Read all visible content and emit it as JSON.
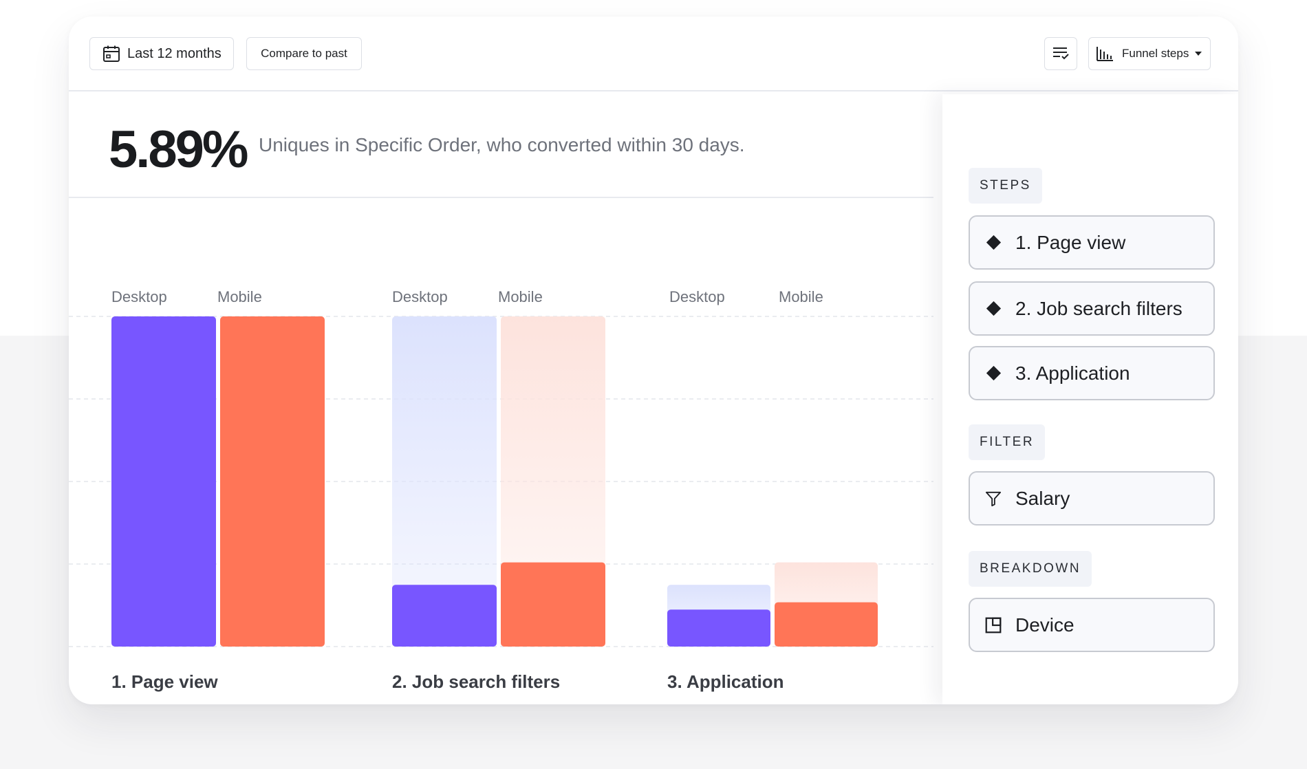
{
  "toolbar": {
    "date_range_label": "Last 12 months",
    "compare_label": "Compare to past",
    "view_label": "Funnel steps"
  },
  "summary": {
    "conversion_rate": "5.89%",
    "description": "Uniques in Specific Order, who converted within 30 days."
  },
  "colors": {
    "desktop": "#7856ff",
    "mobile": "#ff7557",
    "desktop_dropoff": "#dce2fd",
    "mobile_dropoff": "#fde3dd"
  },
  "chart_data": {
    "type": "bar",
    "categories": [
      "1. Page view",
      "2. Job search filters",
      "3. Application"
    ],
    "series": [
      {
        "name": "Desktop",
        "values": [
          100,
          18.7,
          11.2
        ]
      },
      {
        "name": "Mobile",
        "values": [
          100,
          25.5,
          13.4
        ]
      }
    ],
    "dropoff_from": [
      {
        "name": "Desktop",
        "values": [
          null,
          100,
          18.7
        ]
      },
      {
        "name": "Mobile",
        "values": [
          null,
          100,
          25.5
        ]
      }
    ],
    "ylim": [
      0,
      100
    ],
    "grid": true
  },
  "panel": {
    "steps_label": "STEPS",
    "steps": [
      "1. Page view",
      "2. Job search filters",
      "3. Application"
    ],
    "filter_label": "FILTER",
    "filter": "Salary",
    "breakdown_label": "BREAKDOWN",
    "breakdown": "Device"
  }
}
